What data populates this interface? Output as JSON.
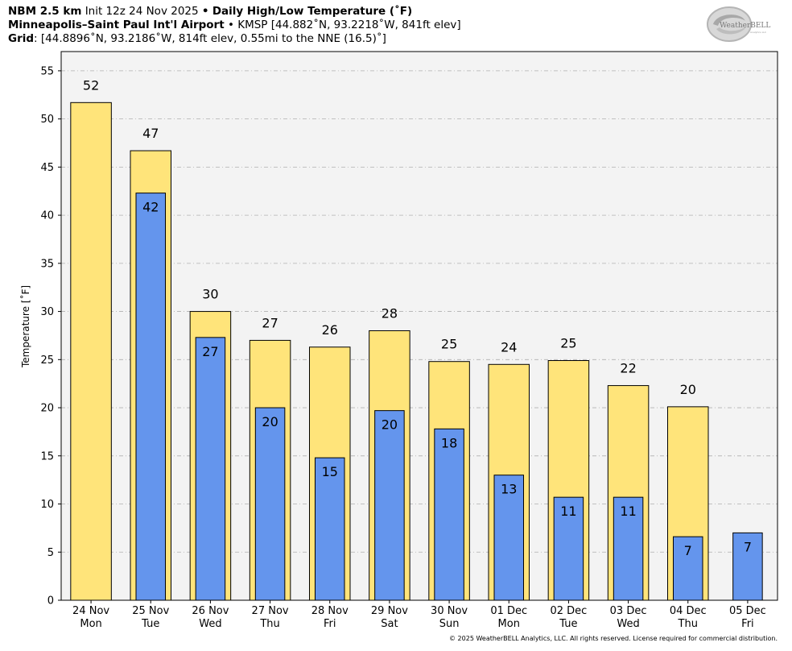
{
  "header": {
    "line1_model": "NBM 2.5 km",
    "line1_init": "Init 12z 24 Nov 2025",
    "line1_sep": "•",
    "line1_product": "Daily High/Low Temperature (˚F)",
    "line2_station": "Minneapolis–Saint Paul Int'l Airport",
    "line2_sep": "•",
    "line2_info": "KMSP [44.882˚N, 93.2218˚W, 841ft elev]",
    "line3_label": "Grid",
    "line3_info": ": [44.8896˚N, 93.2186˚W, 814ft elev, 0.55mi to the NNE (16.5)˚]"
  },
  "logo": {
    "text_main": "WeatherBELL",
    "text_sub": "Analytics LLC"
  },
  "copyright": "© 2025 WeatherBELL Analytics, LLC. All rights reserved. License required for commercial distribution.",
  "chart_data": {
    "type": "bar",
    "ylabel": "Temperature [˚F]",
    "ylim": [
      0,
      57
    ],
    "yticks": [
      0,
      5,
      10,
      15,
      20,
      25,
      30,
      35,
      40,
      45,
      50,
      55
    ],
    "grid": true,
    "categories": [
      {
        "date": "24 Nov",
        "day": "Mon"
      },
      {
        "date": "25 Nov",
        "day": "Tue"
      },
      {
        "date": "26 Nov",
        "day": "Wed"
      },
      {
        "date": "27 Nov",
        "day": "Thu"
      },
      {
        "date": "28 Nov",
        "day": "Fri"
      },
      {
        "date": "29 Nov",
        "day": "Sat"
      },
      {
        "date": "30 Nov",
        "day": "Sun"
      },
      {
        "date": "01 Dec",
        "day": "Mon"
      },
      {
        "date": "02 Dec",
        "day": "Tue"
      },
      {
        "date": "03 Dec",
        "day": "Wed"
      },
      {
        "date": "04 Dec",
        "day": "Thu"
      },
      {
        "date": "05 Dec",
        "day": "Fri"
      }
    ],
    "series": [
      {
        "role": "high",
        "color": "#FFE47A",
        "values": [
          51.7,
          46.7,
          30.0,
          27.0,
          26.3,
          28.0,
          24.8,
          24.5,
          24.9,
          22.3,
          20.1,
          null
        ],
        "labels": [
          "52",
          "47",
          "30",
          "27",
          "26",
          "28",
          "25",
          "24",
          "25",
          "22",
          "20",
          null
        ]
      },
      {
        "role": "low",
        "color": "#6495ED",
        "values": [
          null,
          42.3,
          27.3,
          20.0,
          14.8,
          19.7,
          17.8,
          13.0,
          10.7,
          10.7,
          6.6,
          7.0
        ],
        "labels": [
          null,
          "42",
          "27",
          "20",
          "15",
          "20",
          "18",
          "13",
          "11",
          "11",
          "7",
          "7"
        ]
      }
    ]
  }
}
